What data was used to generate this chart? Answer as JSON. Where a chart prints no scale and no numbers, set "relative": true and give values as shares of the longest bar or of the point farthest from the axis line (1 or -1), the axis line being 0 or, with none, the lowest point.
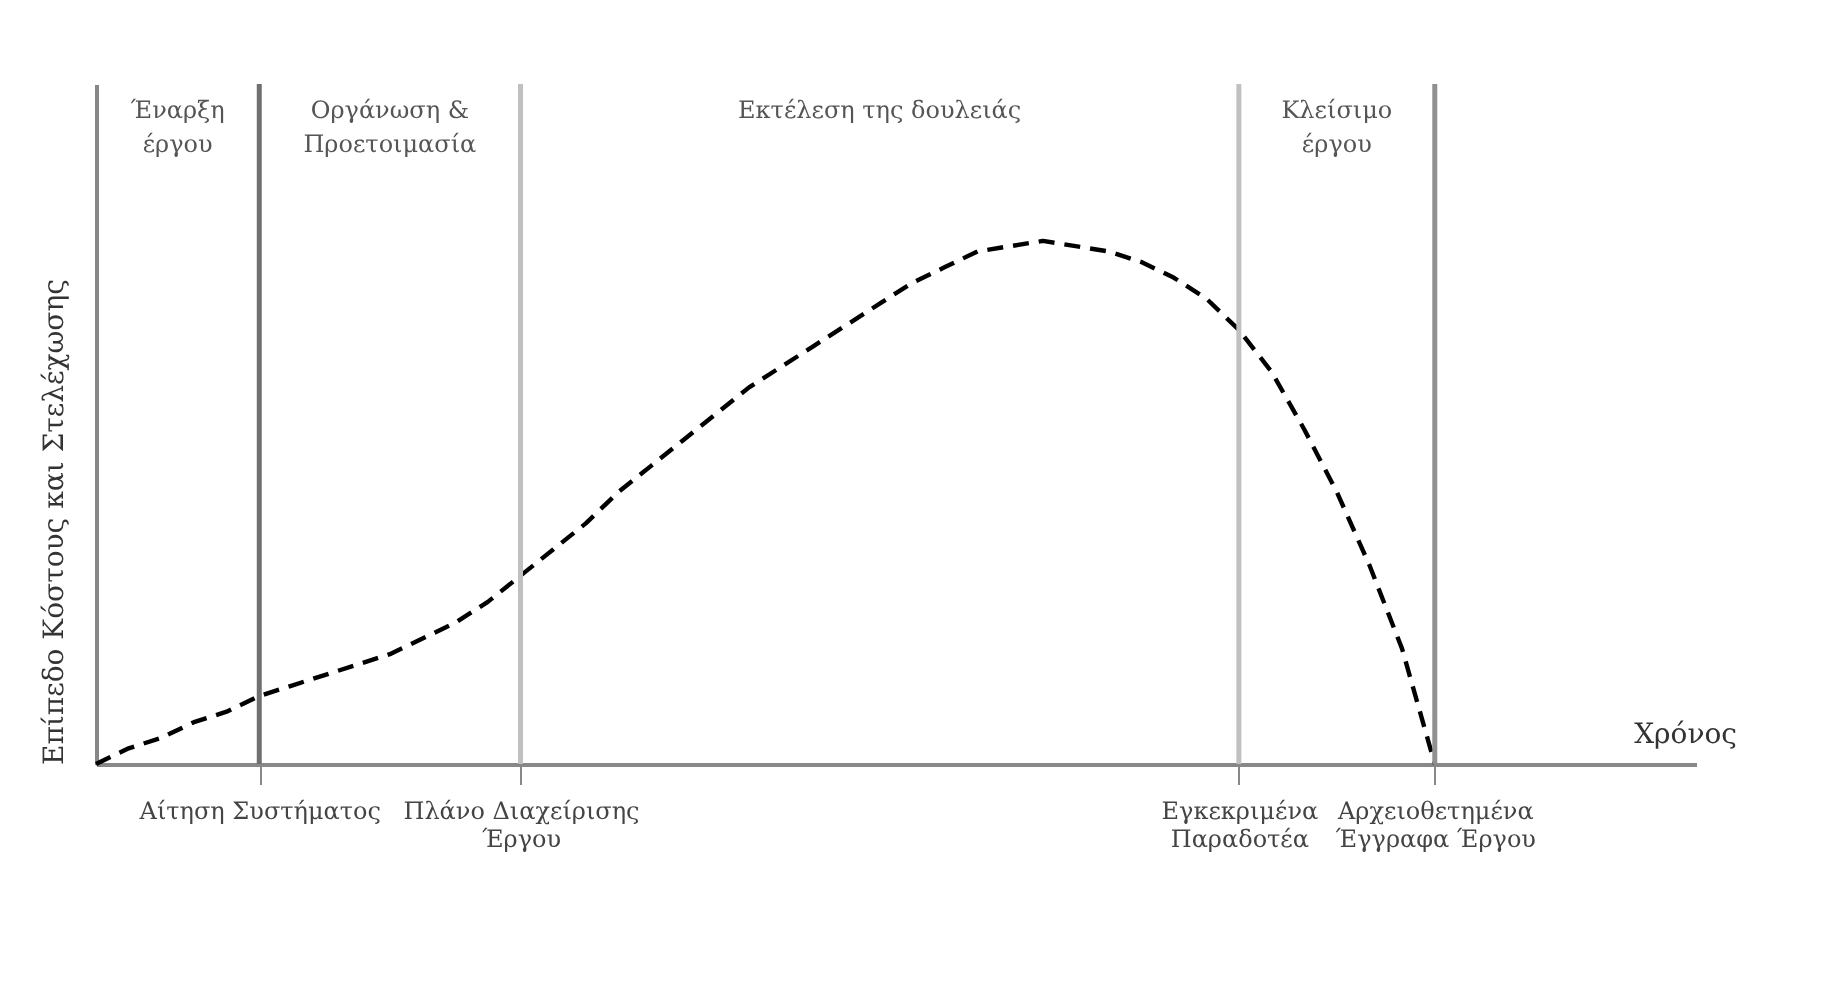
{
  "chart_data": {
    "type": "line",
    "relative": true,
    "ylabel": "Επίπεδο Κόστους και Στελέχωσης",
    "xlabel": "Χρόνος",
    "categories": [
      null,
      null,
      null,
      null,
      null,
      "Αίτηση Συστήματος",
      null,
      null,
      null,
      null,
      null,
      null,
      null,
      "Πλάνο Διαχείρισης Έργου",
      null,
      null,
      null,
      null,
      null,
      null,
      null,
      null,
      null,
      null,
      null,
      null,
      null,
      null,
      null,
      null,
      null,
      null,
      null,
      null,
      null,
      "Εγκεκριμένα Παραδοτέα",
      null,
      null,
      null,
      null,
      null,
      "Αρχειοθετημένα Έγγραφα Έργου",
      null,
      null,
      null,
      null,
      null,
      null,
      null,
      null
    ],
    "series": [
      {
        "color": "#000000",
        "line_style": "dashed",
        "values": [
          0,
          0.03,
          0.05,
          0.08,
          0.1,
          0.13,
          0.15,
          0.17,
          0.19,
          0.21,
          0.24,
          0.27,
          0.31,
          0.36,
          0.41,
          0.46,
          0.52,
          0.57,
          0.62,
          0.67,
          0.72,
          0.76,
          0.8,
          0.84,
          0.88,
          0.92,
          0.95,
          0.98,
          0.99,
          1.0,
          0.99,
          0.98,
          0.96,
          0.93,
          0.89,
          0.83,
          0.75,
          0.64,
          0.52,
          0.38,
          0.22,
          0,
          null,
          null,
          null,
          null,
          null,
          null,
          null,
          null
        ]
      }
    ],
    "ref_lines": [
      {
        "axis": "x",
        "value": "Αίτηση Συστήματος",
        "color": "#707070"
      },
      {
        "axis": "x",
        "value": "Πλάνο Διαχείρισης Έργου",
        "color": "#c0c0c0"
      },
      {
        "axis": "x",
        "value": "Εγκεκριμένα Παραδοτέα",
        "color": "#c0c0c0"
      },
      {
        "axis": "x",
        "value": "Αρχειοθετημένα Έγγραφα Έργου",
        "color": "#909090"
      }
    ],
    "annotations": [
      "Έναρξη έργου",
      "Οργάνωση & Προετοιμασία",
      "Εκτέλεση της δουλειάς",
      "Κλείσιμο έργου"
    ],
    "grid": false
  }
}
